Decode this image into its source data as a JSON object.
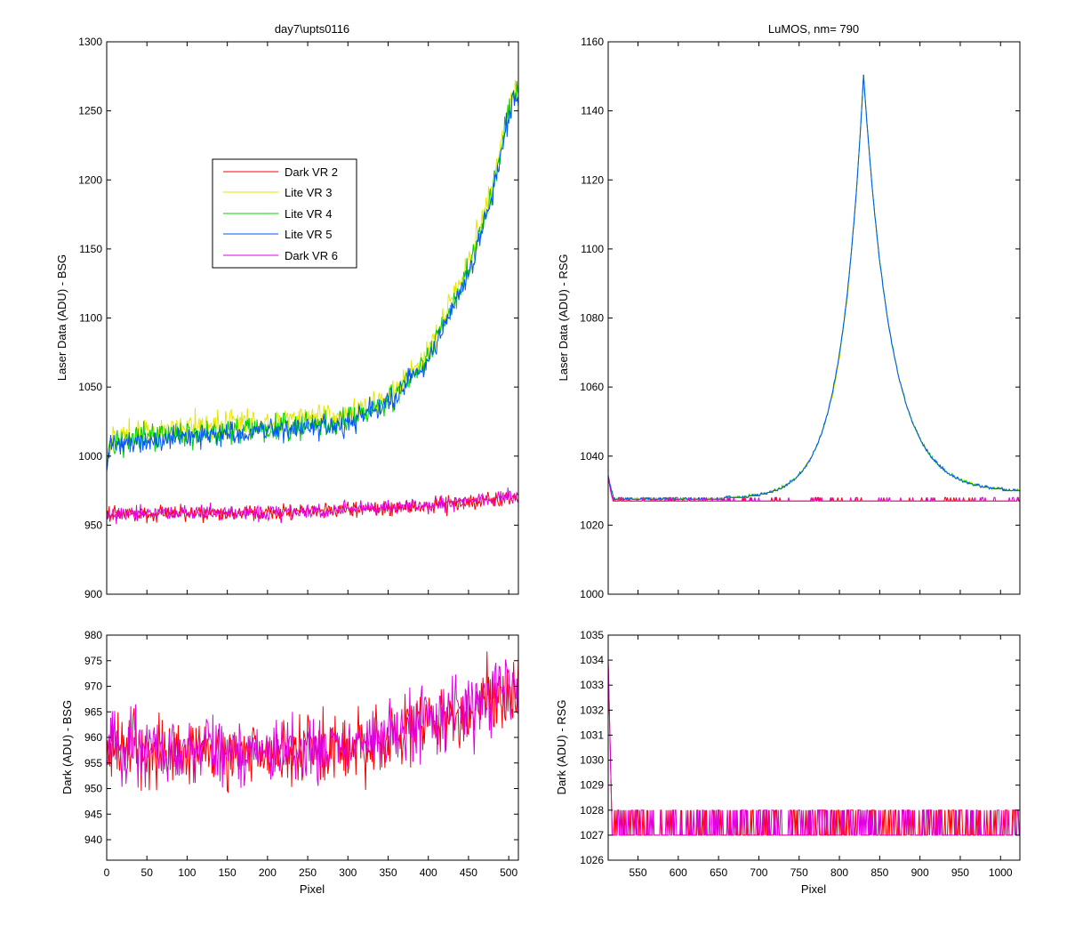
{
  "chart_data": [
    {
      "id": "tl",
      "type": "line",
      "title": "day7\\upts0116",
      "xlabel": "",
      "ylabel": "Laser Data (ADU) - BSG",
      "xlim": [
        0,
        512
      ],
      "ylim": [
        900,
        1300
      ],
      "xticks": [
        0,
        50,
        100,
        150,
        200,
        250,
        300,
        350,
        400,
        450,
        500
      ],
      "xtick_labels_shown": false,
      "yticks": [
        900,
        950,
        1000,
        1050,
        1100,
        1150,
        1200,
        1250,
        1300
      ],
      "legend_position": "upper-left-center",
      "series": [
        {
          "name": "Dark VR 2",
          "color": "#ff0000",
          "kind": "flat",
          "base": [
            [
              0,
              958
            ],
            [
              200,
              959
            ],
            [
              300,
              961
            ],
            [
              400,
              964
            ],
            [
              512,
              970
            ]
          ],
          "noise": 4
        },
        {
          "name": "Lite VR 3",
          "color": "#e5e500",
          "kind": "rise",
          "base": [
            [
              0,
              1012
            ],
            [
              100,
              1022
            ],
            [
              200,
              1025
            ],
            [
              300,
              1030
            ],
            [
              350,
              1042
            ],
            [
              400,
              1075
            ],
            [
              450,
              1140
            ],
            [
              480,
              1195
            ],
            [
              505,
              1265
            ]
          ],
          "noise": 7
        },
        {
          "name": "Lite VR 4",
          "color": "#00d000",
          "kind": "rise",
          "base": [
            [
              0,
              1010
            ],
            [
              100,
              1016
            ],
            [
              200,
              1020
            ],
            [
              300,
              1026
            ],
            [
              350,
              1040
            ],
            [
              400,
              1072
            ],
            [
              450,
              1135
            ],
            [
              480,
              1192
            ],
            [
              505,
              1262
            ]
          ],
          "noise": 7
        },
        {
          "name": "Lite VR 5",
          "color": "#0055ff",
          "kind": "rise",
          "base": [
            [
              0,
              1008
            ],
            [
              100,
              1014
            ],
            [
              200,
              1018
            ],
            [
              300,
              1024
            ],
            [
              350,
              1038
            ],
            [
              400,
              1070
            ],
            [
              450,
              1132
            ],
            [
              480,
              1190
            ],
            [
              505,
              1258
            ]
          ],
          "noise": 6
        },
        {
          "name": "Dark VR 6",
          "color": "#e000e0",
          "kind": "flat",
          "base": [
            [
              0,
              958
            ],
            [
              200,
              959
            ],
            [
              300,
              961
            ],
            [
              400,
              965
            ],
            [
              512,
              971
            ]
          ],
          "noise": 4
        }
      ]
    },
    {
      "id": "tr",
      "type": "line",
      "title": "LuMOS, nm= 790",
      "xlabel": "",
      "ylabel": "Laser Data (ADU) - RSG",
      "xlim": [
        513,
        1024
      ],
      "ylim": [
        1000,
        1160
      ],
      "xticks": [
        550,
        600,
        650,
        700,
        750,
        800,
        850,
        900,
        950,
        1000
      ],
      "xtick_labels_shown": false,
      "yticks": [
        1000,
        1020,
        1040,
        1060,
        1080,
        1100,
        1120,
        1140,
        1160
      ],
      "peak": {
        "x": 830,
        "y": 1151
      },
      "series": [
        {
          "name": "Dark VR 2",
          "color": "#ff0000",
          "kind": "dark-rsg"
        },
        {
          "name": "Lite VR 3",
          "color": "#e5e500",
          "kind": "peak"
        },
        {
          "name": "Lite VR 4",
          "color": "#00d000",
          "kind": "peak"
        },
        {
          "name": "Lite VR 5",
          "color": "#0055ff",
          "kind": "peak"
        },
        {
          "name": "Dark VR 6",
          "color": "#e000e0",
          "kind": "dark-rsg"
        }
      ]
    },
    {
      "id": "bl",
      "type": "line",
      "title": "",
      "xlabel": "Pixel",
      "ylabel": "Dark (ADU) - BSG",
      "xlim": [
        0,
        512
      ],
      "ylim": [
        936,
        980
      ],
      "xticks": [
        0,
        50,
        100,
        150,
        200,
        250,
        300,
        350,
        400,
        450,
        500
      ],
      "xtick_labels_shown": true,
      "yticks": [
        940,
        945,
        950,
        955,
        960,
        965,
        970,
        975,
        980
      ],
      "series": [
        {
          "name": "Dark VR 2",
          "color": "#ff0000",
          "base": [
            [
              0,
              958
            ],
            [
              200,
              957
            ],
            [
              300,
              958
            ],
            [
              400,
              962
            ],
            [
              512,
              969
            ]
          ],
          "noise": 4.5
        },
        {
          "name": "Dark VR 6",
          "color": "#e000e0",
          "base": [
            [
              0,
              958
            ],
            [
              200,
              957
            ],
            [
              300,
              958
            ],
            [
              400,
              963
            ],
            [
              512,
              970
            ]
          ],
          "noise": 5
        }
      ]
    },
    {
      "id": "br",
      "type": "line",
      "title": "",
      "xlabel": "Pixel",
      "ylabel": "Dark (ADU) - RSG",
      "xlim": [
        513,
        1024
      ],
      "ylim": [
        1026,
        1035
      ],
      "xticks": [
        550,
        600,
        650,
        700,
        750,
        800,
        850,
        900,
        950,
        1000
      ],
      "xtick_labels_shown": true,
      "yticks": [
        1026,
        1027,
        1028,
        1029,
        1030,
        1031,
        1032,
        1033,
        1034,
        1035
      ],
      "series": [
        {
          "name": "Dark VR 2",
          "color": "#ff0000",
          "low": 1027,
          "high": 1028
        },
        {
          "name": "Dark VR 6",
          "color": "#e000e0",
          "low": 1027,
          "high": 1028
        }
      ]
    }
  ]
}
